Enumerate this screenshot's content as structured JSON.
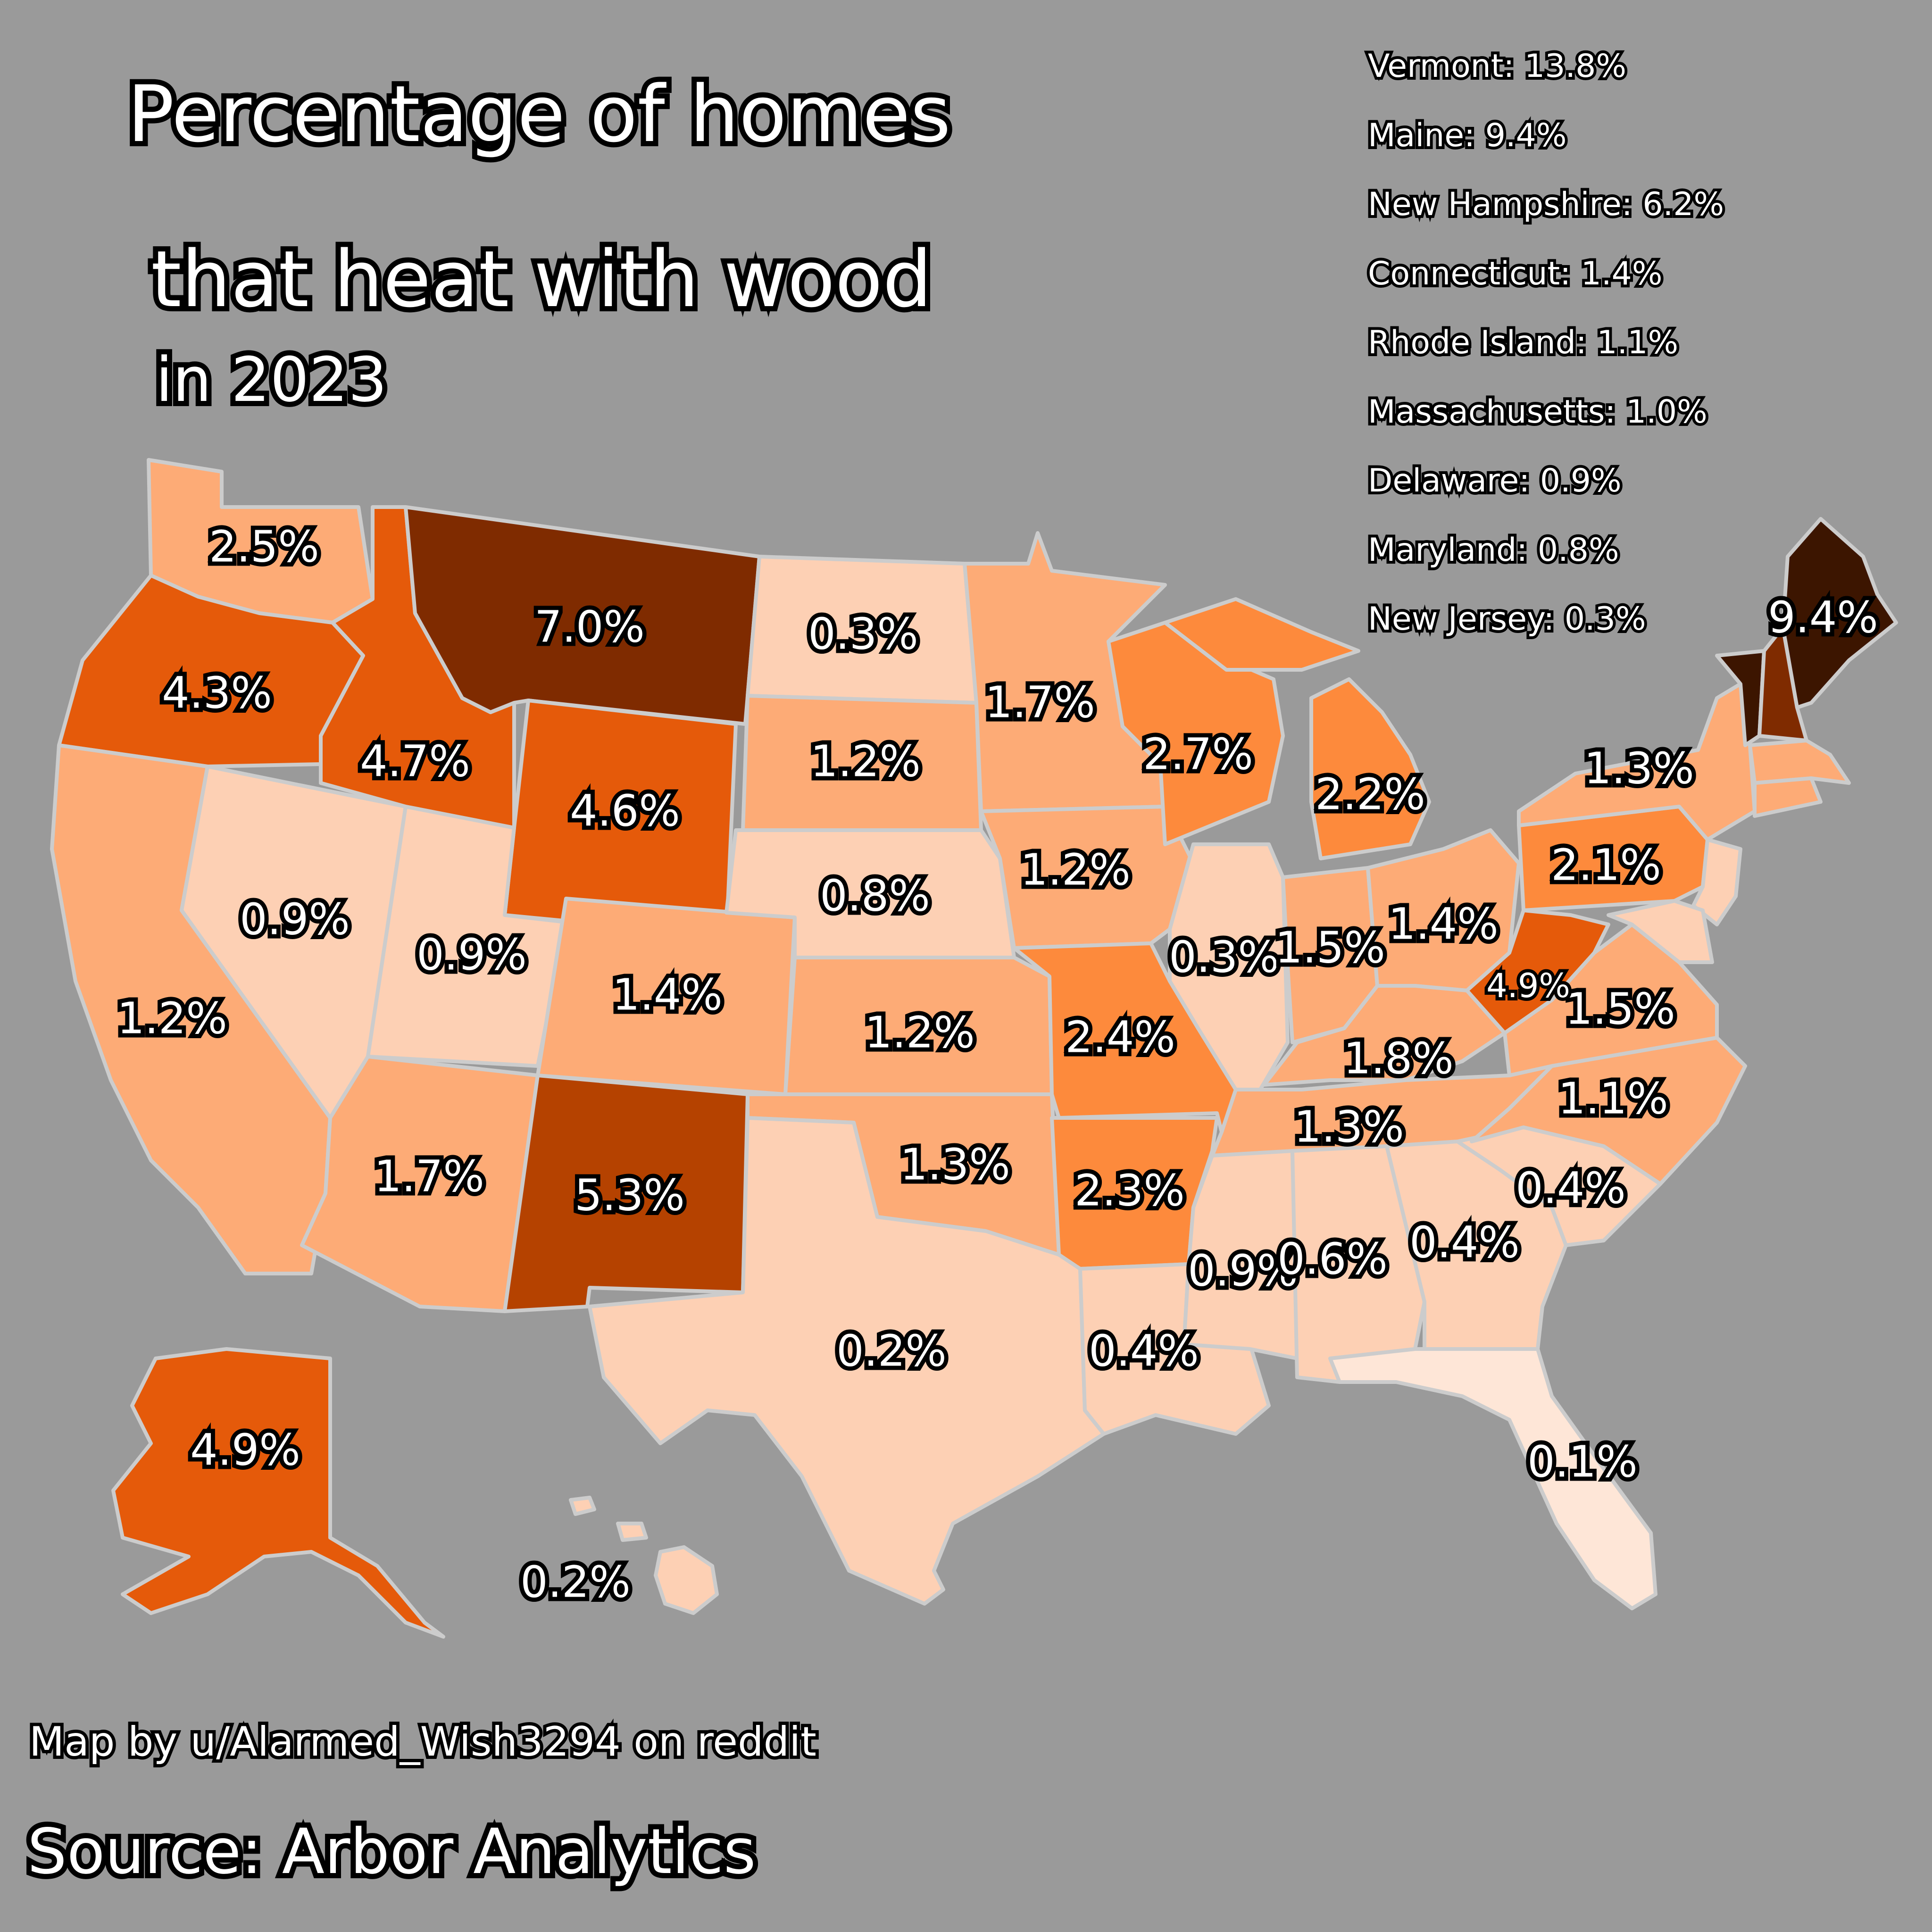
{
  "title": {
    "line1": "Percentage of homes",
    "line2": "that heat with wood",
    "subtitle": "in 2023"
  },
  "legend_items": [
    "Vermont: 13.8%",
    "Maine: 9.4%",
    "New Hampshire: 6.2%",
    "Connecticut: 1.4%",
    "Rhode Island: 1.1%",
    "Massachusetts: 1.0%",
    "Delaware: 0.9%",
    "Maryland: 0.8%",
    "New Jersey: 0.3%"
  ],
  "credit": "Map by u/Alarmed_Wish3294 on reddit",
  "source": "Source: Arbor Analytics",
  "states": {
    "WA": "2.5%",
    "OR": "4.3%",
    "ID": "4.7%",
    "MT": "7.0%",
    "WY": "4.6%",
    "ND": "0.3%",
    "SD": "1.2%",
    "NE": "0.8%",
    "KS": "1.2%",
    "OK": "1.3%",
    "TX": "0.2%",
    "NM": "5.3%",
    "AZ": "1.7%",
    "CO": "1.4%",
    "UT": "0.9%",
    "NV": "0.9%",
    "CA": "1.2%",
    "MN": "1.7%",
    "IA": "1.2%",
    "MO": "2.4%",
    "AR": "2.3%",
    "LA": "0.4%",
    "WI": "2.7%",
    "IL": "0.3%",
    "MI": "2.2%",
    "IN": "1.5%",
    "OH": "1.4%",
    "KY": "1.8%",
    "TN": "1.3%",
    "MS": "0.9%",
    "AL": "0.6%",
    "GA": "0.4%",
    "FL": "0.1%",
    "SC": "0.4%",
    "NC": "1.1%",
    "VA": "1.5%",
    "WV": "4.9%",
    "PA": "2.1%",
    "NY": "1.3%",
    "ME": "9.4%",
    "AK": "4.9%",
    "HI": "0.2%"
  },
  "colors": {
    "background": "#9a9a9a",
    "very_light": "#fee6d7",
    "light": "#fdd0b4",
    "light_mid": "#fdab76",
    "mid": "#fd8a3c",
    "strong": "#e55a0a",
    "deep": "#b54200",
    "darker": "#7f2b00",
    "darkest": "#3c1500",
    "border": "#cccccc"
  }
}
